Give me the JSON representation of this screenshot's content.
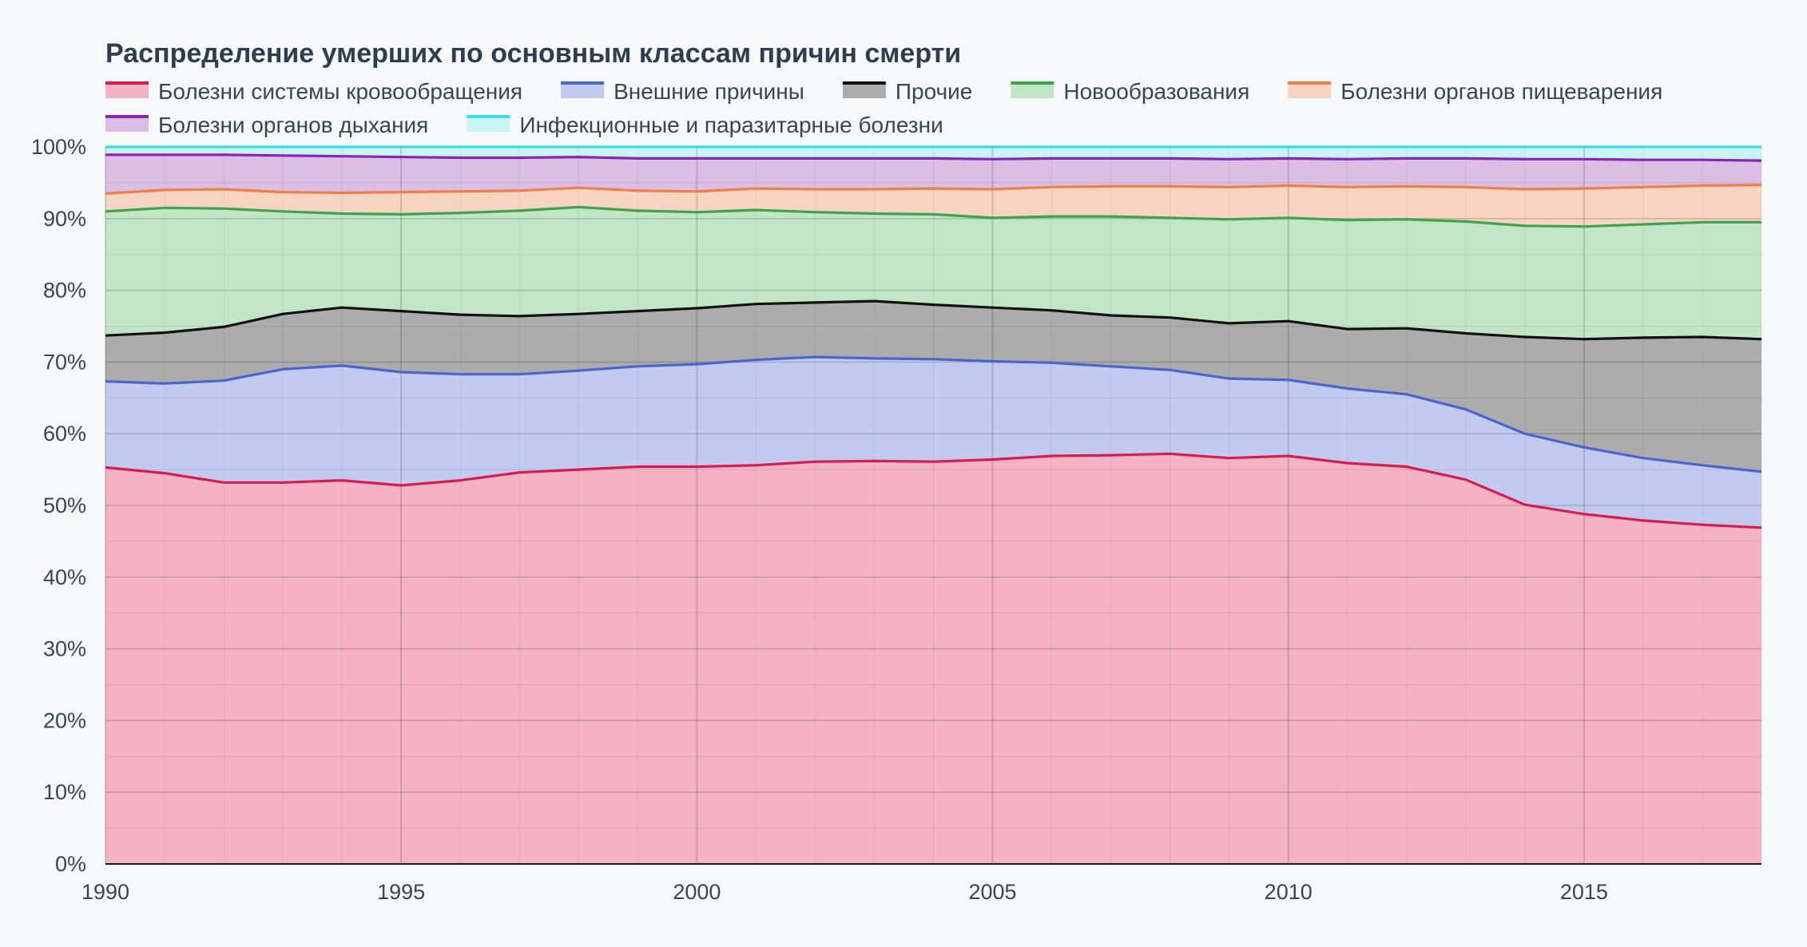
{
  "chart_data": {
    "type": "area",
    "stacked": true,
    "percent": true,
    "title": "Распределение умерших по основным классам причин смерти",
    "x": [
      1990,
      1991,
      1992,
      1993,
      1994,
      1995,
      1996,
      1997,
      1998,
      1999,
      2000,
      2001,
      2002,
      2003,
      2004,
      2005,
      2006,
      2007,
      2008,
      2009,
      2010,
      2011,
      2012,
      2013,
      2014,
      2015,
      2016,
      2017,
      2018
    ],
    "x_ticks": [
      1990,
      1995,
      2000,
      2005,
      2010,
      2015
    ],
    "y_ticks": [
      0,
      10,
      20,
      30,
      40,
      50,
      60,
      70,
      80,
      90,
      100
    ],
    "y_tick_labels": [
      "0%",
      "10%",
      "20%",
      "30%",
      "40%",
      "50%",
      "60%",
      "70%",
      "80%",
      "90%",
      "100%"
    ],
    "ylim": [
      0,
      100
    ],
    "xlim": [
      1990,
      2018
    ],
    "grid": true,
    "legend_position": "top",
    "series": [
      {
        "name": "Болезни системы кровообращения",
        "color": "#d81b50",
        "fill": "#f4b3c4",
        "cumulative": [
          55.3,
          54.5,
          53.2,
          53.2,
          53.5,
          52.8,
          53.5,
          54.6,
          55.0,
          55.4,
          55.4,
          55.6,
          56.1,
          56.2,
          56.1,
          56.4,
          56.9,
          57.0,
          57.2,
          56.6,
          56.9,
          55.9,
          55.4,
          53.6,
          50.1,
          48.8,
          47.9,
          47.3,
          46.9
        ]
      },
      {
        "name": "Внешние причины",
        "color": "#4a64d0",
        "fill": "#c3caf0",
        "cumulative": [
          67.3,
          67.0,
          67.4,
          69.0,
          69.5,
          68.6,
          68.3,
          68.3,
          68.8,
          69.4,
          69.7,
          70.3,
          70.7,
          70.5,
          70.4,
          70.1,
          69.9,
          69.4,
          68.9,
          67.7,
          67.5,
          66.3,
          65.5,
          63.4,
          60.0,
          58.1,
          56.6,
          55.6,
          54.7
        ]
      },
      {
        "name": "Прочие",
        "color": "#111111",
        "fill": "#acacac",
        "cumulative": [
          73.7,
          74.1,
          74.9,
          76.7,
          77.6,
          77.1,
          76.6,
          76.4,
          76.7,
          77.1,
          77.5,
          78.1,
          78.3,
          78.5,
          78.0,
          77.6,
          77.2,
          76.5,
          76.2,
          75.4,
          75.7,
          74.6,
          74.7,
          74.0,
          73.5,
          73.2,
          73.4,
          73.5,
          73.2
        ]
      },
      {
        "name": "Новообразования",
        "color": "#3ea34d",
        "fill": "#c2e6c5",
        "cumulative": [
          91.0,
          91.5,
          91.4,
          91.0,
          90.7,
          90.6,
          90.8,
          91.1,
          91.6,
          91.1,
          90.9,
          91.2,
          90.9,
          90.7,
          90.6,
          90.1,
          90.3,
          90.3,
          90.1,
          89.9,
          90.1,
          89.8,
          89.9,
          89.6,
          89.0,
          88.9,
          89.2,
          89.5,
          89.5
        ]
      },
      {
        "name": "Болезни органов пищеварения",
        "color": "#ef7f45",
        "fill": "#f7d4c2",
        "cumulative": [
          93.5,
          94.0,
          94.1,
          93.7,
          93.6,
          93.7,
          93.8,
          93.9,
          94.3,
          93.9,
          93.8,
          94.2,
          94.1,
          94.1,
          94.2,
          94.1,
          94.4,
          94.5,
          94.5,
          94.4,
          94.6,
          94.4,
          94.5,
          94.4,
          94.1,
          94.2,
          94.4,
          94.6,
          94.7
        ]
      },
      {
        "name": "Болезни органов дыхания",
        "color": "#8a24b5",
        "fill": "#dcbde4",
        "cumulative": [
          98.9,
          98.9,
          98.9,
          98.8,
          98.7,
          98.6,
          98.5,
          98.5,
          98.6,
          98.4,
          98.4,
          98.4,
          98.4,
          98.4,
          98.4,
          98.3,
          98.4,
          98.4,
          98.4,
          98.3,
          98.4,
          98.3,
          98.4,
          98.4,
          98.3,
          98.3,
          98.2,
          98.2,
          98.1
        ]
      },
      {
        "name": "Инфекционные и паразитарные болезни",
        "color": "#3cdce0",
        "fill": "#c8f4f4",
        "cumulative": [
          100,
          100,
          100,
          100,
          100,
          100,
          100,
          100,
          100,
          100,
          100,
          100,
          100,
          100,
          100,
          100,
          100,
          100,
          100,
          100,
          100,
          100,
          100,
          100,
          100,
          100,
          100,
          100,
          100
        ]
      }
    ]
  }
}
